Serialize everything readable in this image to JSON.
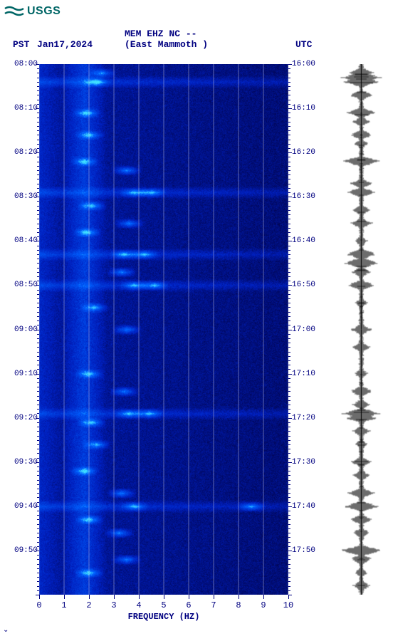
{
  "logo": {
    "text": "USGS",
    "color": "#006666"
  },
  "header": {
    "pst_label": "PST",
    "date": "Jan17,2024",
    "station": "MEM EHZ NC --",
    "location": "(East Mammoth )",
    "utc_label": "UTC",
    "text_color": "#000080"
  },
  "spectrogram": {
    "type": "spectrogram",
    "xlabel": "FREQUENCY (HZ)",
    "label_fontsize": 12,
    "xlim": [
      0,
      10
    ],
    "xticks": [
      0,
      1,
      2,
      3,
      4,
      5,
      6,
      7,
      8,
      9,
      10
    ],
    "y_left_label_prefix": "PST",
    "y_right_label_prefix": "UTC",
    "left_time_ticks": [
      "08:00",
      "08:10",
      "08:20",
      "08:30",
      "08:40",
      "08:50",
      "09:00",
      "09:10",
      "09:20",
      "09:30",
      "09:40",
      "09:50"
    ],
    "right_time_ticks": [
      "16:00",
      "16:10",
      "16:20",
      "16:30",
      "16:40",
      "16:50",
      "17:00",
      "17:10",
      "17:20",
      "17:30",
      "17:40",
      "17:50"
    ],
    "minor_tick_interval_min": 1,
    "total_minutes": 120,
    "colormap": {
      "low": "#000040",
      "mid": "#0020c0",
      "high": "#0060ff",
      "peak": "#40e0ff"
    },
    "grid_color": "#b0b0d8",
    "energy_ridge_hz": 1.8,
    "bright_events_min_hz": [
      [
        2,
        2.5
      ],
      [
        4,
        2.3
      ],
      [
        11,
        1.9
      ],
      [
        16,
        2.0
      ],
      [
        22,
        1.8
      ],
      [
        24,
        3.5
      ],
      [
        29,
        3.8
      ],
      [
        29,
        4.5
      ],
      [
        32,
        2.1
      ],
      [
        36,
        3.6
      ],
      [
        38,
        1.9
      ],
      [
        43,
        3.4
      ],
      [
        43,
        4.2
      ],
      [
        47,
        3.3
      ],
      [
        50,
        3.8
      ],
      [
        50,
        4.6
      ],
      [
        55,
        2.2
      ],
      [
        60,
        3.5
      ],
      [
        70,
        2.0
      ],
      [
        74,
        3.4
      ],
      [
        79,
        3.6
      ],
      [
        79,
        4.4
      ],
      [
        81,
        2.1
      ],
      [
        86,
        2.3
      ],
      [
        92,
        1.8
      ],
      [
        97,
        3.3
      ],
      [
        100,
        3.8
      ],
      [
        100,
        8.5
      ],
      [
        103,
        2.0
      ],
      [
        106,
        3.2
      ],
      [
        112,
        3.5
      ],
      [
        115,
        2.0
      ]
    ],
    "broadband_events_min": [
      4,
      29,
      43,
      50,
      79,
      100
    ]
  },
  "waveform": {
    "type": "seismic-trace",
    "color": "#000000",
    "baseline_offset": 0.5,
    "amplitude_scale": 1.0,
    "events_min_amp": [
      [
        2,
        0.6
      ],
      [
        3,
        0.9
      ],
      [
        4,
        0.8
      ],
      [
        7,
        0.5
      ],
      [
        11,
        0.7
      ],
      [
        13,
        0.4
      ],
      [
        16,
        0.5
      ],
      [
        18,
        0.3
      ],
      [
        22,
        0.9
      ],
      [
        27,
        0.5
      ],
      [
        29,
        0.6
      ],
      [
        33,
        0.4
      ],
      [
        36,
        0.5
      ],
      [
        40,
        0.3
      ],
      [
        43,
        0.7
      ],
      [
        45,
        0.8
      ],
      [
        47,
        0.4
      ],
      [
        50,
        0.6
      ],
      [
        54,
        0.3
      ],
      [
        60,
        0.5
      ],
      [
        64,
        0.4
      ],
      [
        70,
        0.3
      ],
      [
        74,
        0.5
      ],
      [
        77,
        0.4
      ],
      [
        79,
        0.9
      ],
      [
        80,
        0.7
      ],
      [
        83,
        0.4
      ],
      [
        86,
        0.3
      ],
      [
        90,
        0.5
      ],
      [
        93,
        0.4
      ],
      [
        97,
        0.6
      ],
      [
        100,
        0.8
      ],
      [
        103,
        0.5
      ],
      [
        106,
        0.4
      ],
      [
        110,
        1.0
      ],
      [
        112,
        0.5
      ],
      [
        115,
        0.3
      ],
      [
        118,
        0.4
      ]
    ]
  },
  "collapse_glyph": "⌄"
}
